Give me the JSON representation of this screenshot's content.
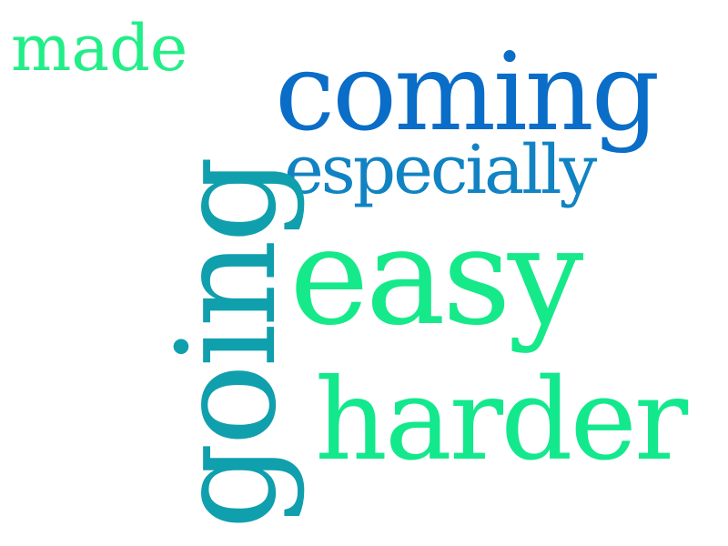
{
  "words": {
    "made": {
      "text": "made",
      "color": "#22ee88"
    },
    "coming": {
      "text": "coming",
      "color": "#0a6dc8"
    },
    "especially": {
      "text": "especially",
      "color": "#1183c3"
    },
    "going": {
      "text": "going",
      "color": "#109fad"
    },
    "easy": {
      "text": "easy",
      "color": "#16e98a"
    },
    "harder": {
      "text": "harder",
      "color": "#13e88d"
    }
  }
}
